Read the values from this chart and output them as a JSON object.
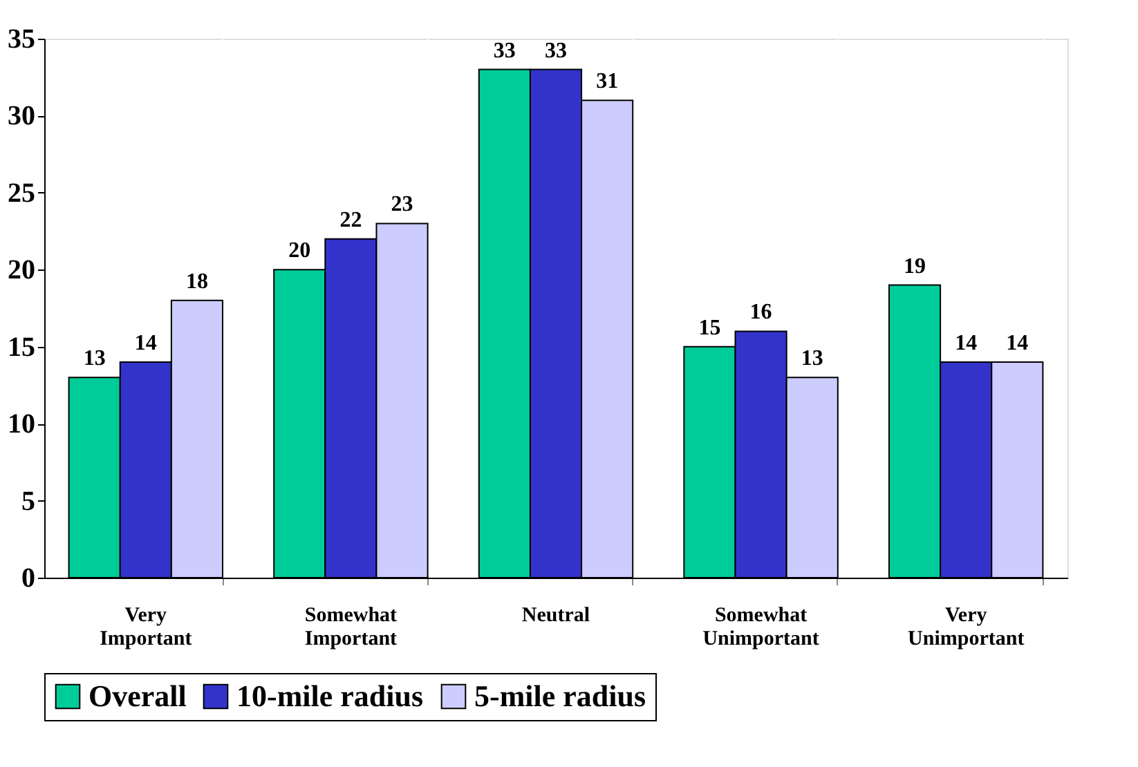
{
  "chart_data": {
    "type": "bar",
    "categories": [
      "Very Important",
      "Somewhat Important",
      "Neutral",
      "Somewhat Unimportant",
      "Very Unimportant"
    ],
    "series": [
      {
        "name": "Overall",
        "color": "#00cc99",
        "values": [
          13,
          20,
          33,
          15,
          19
        ]
      },
      {
        "name": "10-mile radius",
        "color": "#3333cc",
        "values": [
          14,
          22,
          33,
          16,
          14
        ]
      },
      {
        "name": "5-mile radius",
        "color": "#ccccff",
        "values": [
          18,
          23,
          31,
          13,
          14
        ]
      }
    ],
    "ylim": [
      0,
      35
    ],
    "yticks": [
      0,
      5,
      10,
      15,
      20,
      25,
      30,
      35
    ],
    "grid": "x",
    "legend": "bottom",
    "data_labels": true
  }
}
